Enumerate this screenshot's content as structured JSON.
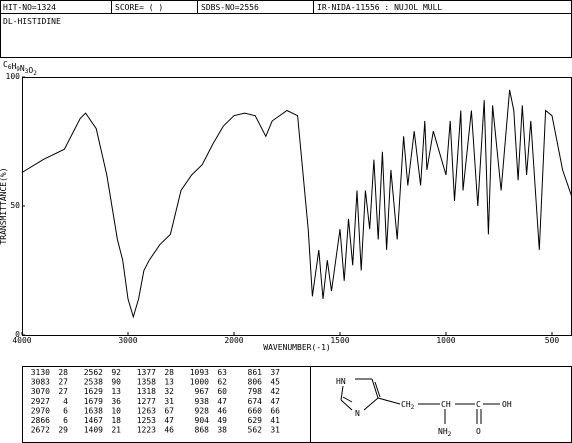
{
  "header": {
    "hit": "HIT-NO=1324",
    "score": "SCORE=  (   )",
    "sdbs": "SDBS-NO=2556",
    "method": "IR-NIDA-11556 : NUJOL MULL"
  },
  "compound": {
    "name": "DL-HISTIDINE",
    "formula": [
      [
        "C",
        "6"
      ],
      [
        "H",
        "9"
      ],
      [
        "N",
        "3"
      ],
      [
        "O",
        "2"
      ]
    ]
  },
  "chart_data": {
    "type": "line",
    "color": "#000000",
    "xlabel": "WAVENUMBER(-1)",
    "ylabel": "TRANSMITTANCE(%)",
    "x": [
      4000,
      3800,
      3600,
      3450,
      3400,
      3300,
      3200,
      3100,
      3050,
      3000,
      2950,
      2900,
      2850,
      2800,
      2700,
      2600,
      2500,
      2400,
      2300,
      2200,
      2100,
      2000,
      1950,
      1900,
      1850,
      1820,
      1750,
      1700,
      1650,
      1630,
      1600,
      1580,
      1560,
      1540,
      1500,
      1480,
      1460,
      1440,
      1420,
      1400,
      1380,
      1360,
      1340,
      1320,
      1300,
      1280,
      1260,
      1230,
      1200,
      1180,
      1150,
      1120,
      1100,
      1090,
      1060,
      1000,
      980,
      960,
      930,
      920,
      880,
      850,
      820,
      800,
      780,
      740,
      700,
      680,
      660,
      640,
      620,
      600,
      560,
      530,
      500,
      450,
      400
    ],
    "values": [
      63,
      68,
      72,
      84,
      86,
      80,
      62,
      37,
      29,
      14,
      7,
      14,
      25,
      29,
      35,
      39,
      56,
      62,
      66,
      74,
      81,
      85,
      86,
      85,
      77,
      83,
      87,
      85,
      41,
      15,
      33,
      14,
      29,
      17,
      41,
      21,
      45,
      27,
      56,
      25,
      56,
      41,
      68,
      37,
      71,
      33,
      64,
      37,
      77,
      58,
      79,
      58,
      83,
      64,
      79,
      62,
      83,
      52,
      87,
      56,
      87,
      50,
      91,
      39,
      89,
      56,
      95,
      87,
      60,
      89,
      62,
      83,
      33,
      87,
      85,
      64,
      52
    ],
    "xlim": [
      4000,
      400
    ],
    "xticks": [
      4000,
      3000,
      2000,
      1500,
      1000,
      500
    ],
    "ylim": [
      0,
      100
    ],
    "yticks": [
      0,
      50,
      100
    ]
  },
  "peaks": [
    [
      [
        3130,
        28
      ],
      [
        3083,
        27
      ],
      [
        3070,
        27
      ],
      [
        2927,
        4
      ],
      [
        2970,
        6
      ],
      [
        2866,
        6
      ],
      [
        2672,
        29
      ]
    ],
    [
      [
        2562,
        92
      ],
      [
        2538,
        90
      ],
      [
        1629,
        13
      ],
      [
        1679,
        36
      ],
      [
        1638,
        10
      ],
      [
        1467,
        18
      ],
      [
        1409,
        21
      ]
    ],
    [
      [
        1377,
        28
      ],
      [
        1358,
        13
      ],
      [
        1318,
        32
      ],
      [
        1277,
        31
      ],
      [
        1263,
        67
      ],
      [
        1253,
        47
      ],
      [
        1223,
        46
      ]
    ],
    [
      [
        1093,
        63
      ],
      [
        1000,
        62
      ],
      [
        967,
        60
      ],
      [
        938,
        47
      ],
      [
        928,
        46
      ],
      [
        904,
        49
      ],
      [
        868,
        38
      ]
    ],
    [
      [
        861,
        37
      ],
      [
        806,
        45
      ],
      [
        798,
        42
      ],
      [
        674,
        47
      ],
      [
        660,
        66
      ],
      [
        629,
        41
      ],
      [
        562,
        31
      ]
    ]
  ],
  "structure": {
    "nh": "HN",
    "n": "N",
    "ch2": [
      "CH",
      "2"
    ],
    "ch": "CH",
    "c": "C",
    "oh": "OH",
    "nh2": [
      "NH",
      "2"
    ],
    "o": "O"
  }
}
